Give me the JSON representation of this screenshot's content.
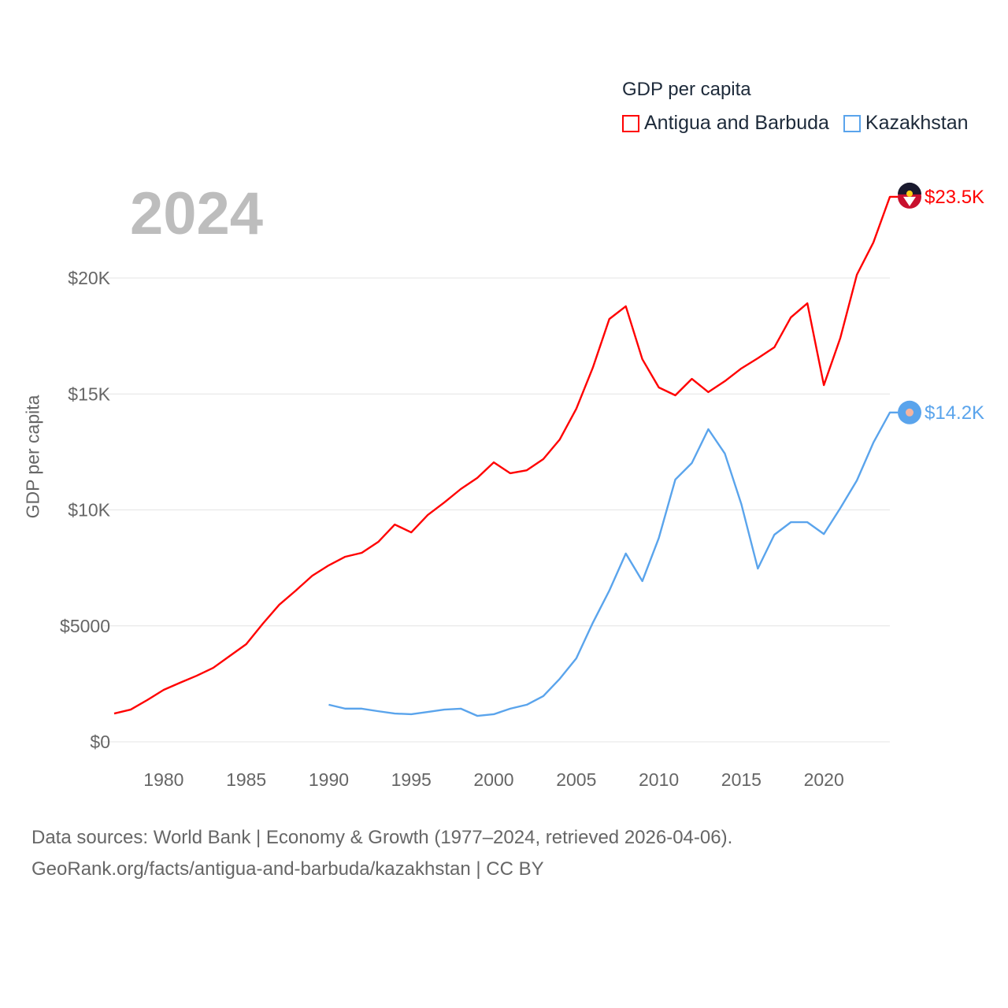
{
  "chart_data": {
    "type": "line",
    "title": "",
    "year_label": "2024",
    "legend_title": "GDP per capita",
    "legend_placement": "top-right",
    "ylabel": "GDP per capita",
    "xlabel": "",
    "xlim": [
      1977,
      2024
    ],
    "ylim": [
      0,
      24000
    ],
    "grid": true,
    "x_ticks": [
      1980,
      1985,
      1990,
      1995,
      2000,
      2005,
      2010,
      2015,
      2020
    ],
    "x_tick_labels": [
      "1980",
      "1985",
      "1990",
      "1995",
      "2000",
      "2005",
      "2010",
      "2015",
      "2020"
    ],
    "y_ticks": [
      0,
      5000,
      10000,
      15000,
      20000
    ],
    "y_tick_labels": [
      "$0",
      "$5000",
      "$10K",
      "$15K",
      "$20K"
    ],
    "series": [
      {
        "name": "Antigua and Barbuda",
        "color": "#ff0000",
        "end_label": "$23.5K",
        "start_year": 1977,
        "values": [
          1220,
          1390,
          1800,
          2240,
          2550,
          2850,
          3190,
          3700,
          4210,
          5090,
          5910,
          6520,
          7160,
          7610,
          7980,
          8150,
          8620,
          9370,
          9030,
          9780,
          10320,
          10900,
          11380,
          12050,
          11580,
          11710,
          12190,
          13040,
          14360,
          16130,
          18230,
          18780,
          16500,
          15280,
          14940,
          15650,
          15080,
          15550,
          16100,
          16540,
          17010,
          18300,
          18910,
          15380,
          17420,
          20140,
          21530,
          23500
        ]
      },
      {
        "name": "Kazakhstan",
        "color": "#5aa4ec",
        "end_label": "$14.2K",
        "start_year": 1990,
        "values": [
          1600,
          1430,
          1430,
          1320,
          1220,
          1190,
          1290,
          1390,
          1430,
          1120,
          1190,
          1430,
          1600,
          1970,
          2720,
          3600,
          5130,
          6520,
          8120,
          6930,
          8790,
          11310,
          12020,
          13480,
          12430,
          10250,
          7470,
          8930,
          9470,
          9470,
          8960,
          10080,
          11270,
          12900,
          14200
        ]
      }
    ]
  },
  "footer": {
    "line1": "Data sources: World Bank | Economy & Growth (1977–2024, retrieved 2026-04-06).",
    "line2": "GeoRank.org/facts/antigua-and-barbuda/kazakhstan | CC BY"
  }
}
